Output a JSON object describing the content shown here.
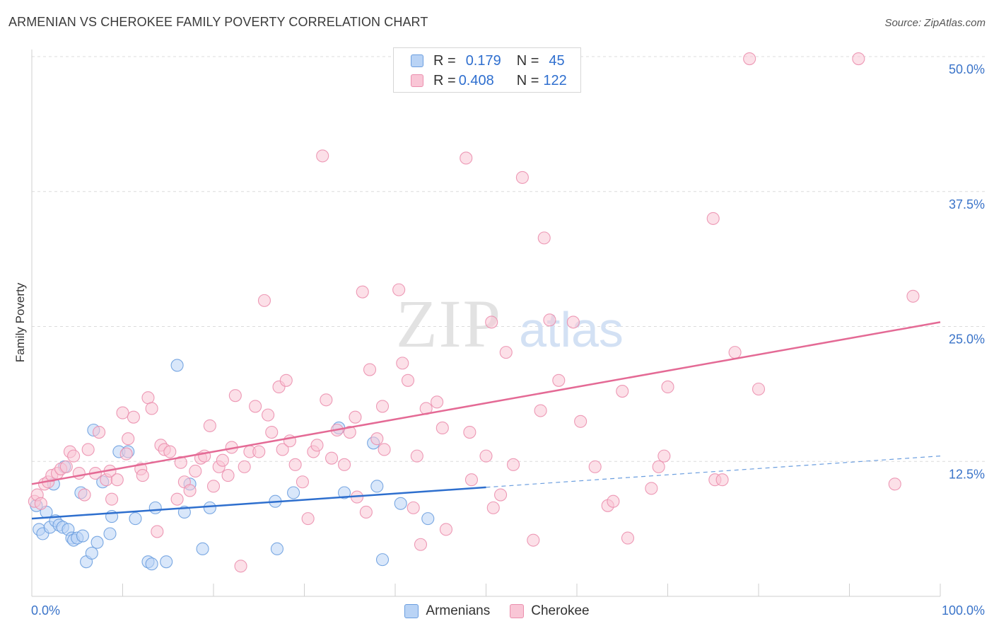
{
  "title": "ARMENIAN VS CHEROKEE FAMILY POVERTY CORRELATION CHART",
  "source": "Source: ZipAtlas.com",
  "watermark": {
    "zip": "ZIP",
    "atlas": "atlas"
  },
  "legend_top": [
    {
      "r_label": "R =",
      "r_value": "0.179",
      "n_label": "N =",
      "n_value": "45"
    },
    {
      "r_label": "R =",
      "r_value": "0.408",
      "n_label": "N =",
      "n_value": "122"
    }
  ],
  "legend_bottom": [
    {
      "label": "Armenians"
    },
    {
      "label": "Cherokee"
    }
  ],
  "chart_data": {
    "type": "scatter",
    "xlabel": "",
    "ylabel": "Family Poverty",
    "xlim": [
      0,
      100
    ],
    "ylim": [
      0,
      50
    ],
    "x_tick_labels": [
      {
        "value": 0,
        "label": "0.0%"
      },
      {
        "value": 100,
        "label": "100.0%"
      }
    ],
    "y_tick_labels": [
      {
        "value": 12.5,
        "label": "12.5%"
      },
      {
        "value": 25,
        "label": "25.0%"
      },
      {
        "value": 37.5,
        "label": "37.5%"
      },
      {
        "value": 50,
        "label": "50.0%"
      }
    ],
    "grid": true,
    "legend_placement": "bottom",
    "series": [
      {
        "name": "Armenians",
        "color": "#6b9edf",
        "fill": "#b9d3f5",
        "trend": {
          "x": [
            0,
            50
          ],
          "y": [
            7.2,
            10.1
          ],
          "extended_to": [
            100,
            13.0
          ]
        },
        "points": [
          [
            0.5,
            8.4
          ],
          [
            0.8,
            6.2
          ],
          [
            1.2,
            5.8
          ],
          [
            1.6,
            7.8
          ],
          [
            2.0,
            6.4
          ],
          [
            2.4,
            10.4
          ],
          [
            2.6,
            7.0
          ],
          [
            3.0,
            6.6
          ],
          [
            3.4,
            6.4
          ],
          [
            3.6,
            12.0
          ],
          [
            4.0,
            6.2
          ],
          [
            4.4,
            5.4
          ],
          [
            4.6,
            5.2
          ],
          [
            5.0,
            5.4
          ],
          [
            5.4,
            9.6
          ],
          [
            5.6,
            5.6
          ],
          [
            6.0,
            3.2
          ],
          [
            6.6,
            4.0
          ],
          [
            6.8,
            15.4
          ],
          [
            7.2,
            5.0
          ],
          [
            7.8,
            10.6
          ],
          [
            8.6,
            5.8
          ],
          [
            8.8,
            7.4
          ],
          [
            9.6,
            13.4
          ],
          [
            10.6,
            13.4
          ],
          [
            11.4,
            7.2
          ],
          [
            12.8,
            3.2
          ],
          [
            13.2,
            3.0
          ],
          [
            13.6,
            8.2
          ],
          [
            14.8,
            3.2
          ],
          [
            16.8,
            7.8
          ],
          [
            17.4,
            10.4
          ],
          [
            16.0,
            21.4
          ],
          [
            18.8,
            4.4
          ],
          [
            19.6,
            8.2
          ],
          [
            26.8,
            8.8
          ],
          [
            27.0,
            4.4
          ],
          [
            28.8,
            9.6
          ],
          [
            33.8,
            15.6
          ],
          [
            34.4,
            9.6
          ],
          [
            37.6,
            14.2
          ],
          [
            38.0,
            10.2
          ],
          [
            38.6,
            3.4
          ],
          [
            40.6,
            8.6
          ],
          [
            43.6,
            7.2
          ]
        ]
      },
      {
        "name": "Cherokee",
        "color": "#eb8fae",
        "fill": "#f9c6d6",
        "trend": {
          "x": [
            0,
            100
          ],
          "y": [
            10.4,
            25.4
          ]
        },
        "points": [
          [
            0.3,
            8.8
          ],
          [
            0.6,
            9.4
          ],
          [
            1.0,
            8.6
          ],
          [
            1.4,
            10.4
          ],
          [
            1.8,
            10.6
          ],
          [
            2.2,
            11.2
          ],
          [
            2.8,
            11.4
          ],
          [
            3.2,
            11.8
          ],
          [
            3.8,
            12.0
          ],
          [
            4.2,
            13.4
          ],
          [
            4.6,
            13.0
          ],
          [
            5.2,
            11.4
          ],
          [
            5.8,
            9.4
          ],
          [
            6.2,
            13.6
          ],
          [
            7.0,
            11.4
          ],
          [
            7.4,
            15.2
          ],
          [
            8.2,
            10.8
          ],
          [
            8.6,
            11.6
          ],
          [
            8.8,
            9.0
          ],
          [
            9.4,
            10.8
          ],
          [
            10.0,
            17.0
          ],
          [
            10.4,
            13.2
          ],
          [
            10.6,
            14.6
          ],
          [
            11.2,
            16.6
          ],
          [
            12.0,
            11.8
          ],
          [
            12.2,
            11.2
          ],
          [
            12.8,
            18.4
          ],
          [
            13.2,
            17.4
          ],
          [
            13.8,
            6.0
          ],
          [
            14.2,
            14.0
          ],
          [
            14.6,
            13.6
          ],
          [
            15.2,
            13.4
          ],
          [
            16.0,
            9.0
          ],
          [
            16.4,
            12.4
          ],
          [
            16.8,
            10.6
          ],
          [
            17.4,
            9.8
          ],
          [
            18.0,
            11.6
          ],
          [
            18.6,
            12.8
          ],
          [
            19.0,
            13.0
          ],
          [
            19.6,
            15.8
          ],
          [
            20.0,
            10.2
          ],
          [
            20.6,
            12.0
          ],
          [
            21.0,
            12.6
          ],
          [
            21.6,
            11.2
          ],
          [
            22.0,
            13.8
          ],
          [
            22.4,
            18.6
          ],
          [
            23.0,
            2.8
          ],
          [
            23.4,
            12.0
          ],
          [
            24.0,
            13.4
          ],
          [
            24.6,
            17.6
          ],
          [
            25.0,
            13.4
          ],
          [
            25.6,
            27.4
          ],
          [
            26.0,
            16.8
          ],
          [
            26.4,
            15.2
          ],
          [
            27.2,
            19.4
          ],
          [
            27.6,
            13.6
          ],
          [
            28.0,
            20.0
          ],
          [
            28.4,
            14.4
          ],
          [
            29.0,
            12.2
          ],
          [
            29.8,
            10.6
          ],
          [
            30.4,
            7.2
          ],
          [
            31.0,
            13.4
          ],
          [
            31.4,
            14.0
          ],
          [
            32.0,
            40.8
          ],
          [
            32.4,
            18.2
          ],
          [
            33.0,
            12.8
          ],
          [
            33.6,
            15.4
          ],
          [
            34.4,
            12.2
          ],
          [
            35.0,
            15.2
          ],
          [
            35.6,
            16.6
          ],
          [
            35.8,
            9.2
          ],
          [
            36.4,
            28.2
          ],
          [
            36.8,
            7.8
          ],
          [
            37.2,
            21.0
          ],
          [
            38.0,
            14.6
          ],
          [
            38.6,
            17.6
          ],
          [
            38.8,
            13.6
          ],
          [
            40.4,
            28.4
          ],
          [
            40.8,
            21.6
          ],
          [
            41.4,
            20.0
          ],
          [
            42.0,
            8.2
          ],
          [
            42.4,
            13.0
          ],
          [
            42.8,
            4.8
          ],
          [
            43.4,
            17.4
          ],
          [
            44.6,
            18.0
          ],
          [
            45.2,
            15.6
          ],
          [
            45.6,
            6.2
          ],
          [
            47.8,
            40.6
          ],
          [
            48.2,
            15.2
          ],
          [
            48.4,
            10.8
          ],
          [
            50.0,
            13.0
          ],
          [
            50.6,
            25.4
          ],
          [
            50.8,
            8.2
          ],
          [
            51.6,
            9.4
          ],
          [
            52.2,
            22.6
          ],
          [
            53.0,
            12.2
          ],
          [
            54.0,
            38.8
          ],
          [
            55.2,
            5.2
          ],
          [
            56.0,
            17.2
          ],
          [
            56.4,
            33.2
          ],
          [
            57.0,
            25.6
          ],
          [
            58.0,
            20.0
          ],
          [
            59.6,
            25.4
          ],
          [
            60.4,
            16.2
          ],
          [
            62.0,
            12.0
          ],
          [
            63.4,
            8.4
          ],
          [
            64.0,
            8.8
          ],
          [
            65.0,
            19.0
          ],
          [
            65.6,
            5.4
          ],
          [
            68.2,
            10.0
          ],
          [
            69.0,
            12.0
          ],
          [
            69.6,
            13.0
          ],
          [
            70.0,
            19.4
          ],
          [
            75.0,
            35.0
          ],
          [
            75.2,
            10.8
          ],
          [
            76.0,
            10.8
          ],
          [
            77.4,
            22.6
          ],
          [
            79.0,
            49.8
          ],
          [
            80.0,
            19.2
          ],
          [
            91.0,
            49.8
          ],
          [
            95.0,
            10.4
          ],
          [
            97.0,
            27.8
          ]
        ]
      }
    ]
  }
}
